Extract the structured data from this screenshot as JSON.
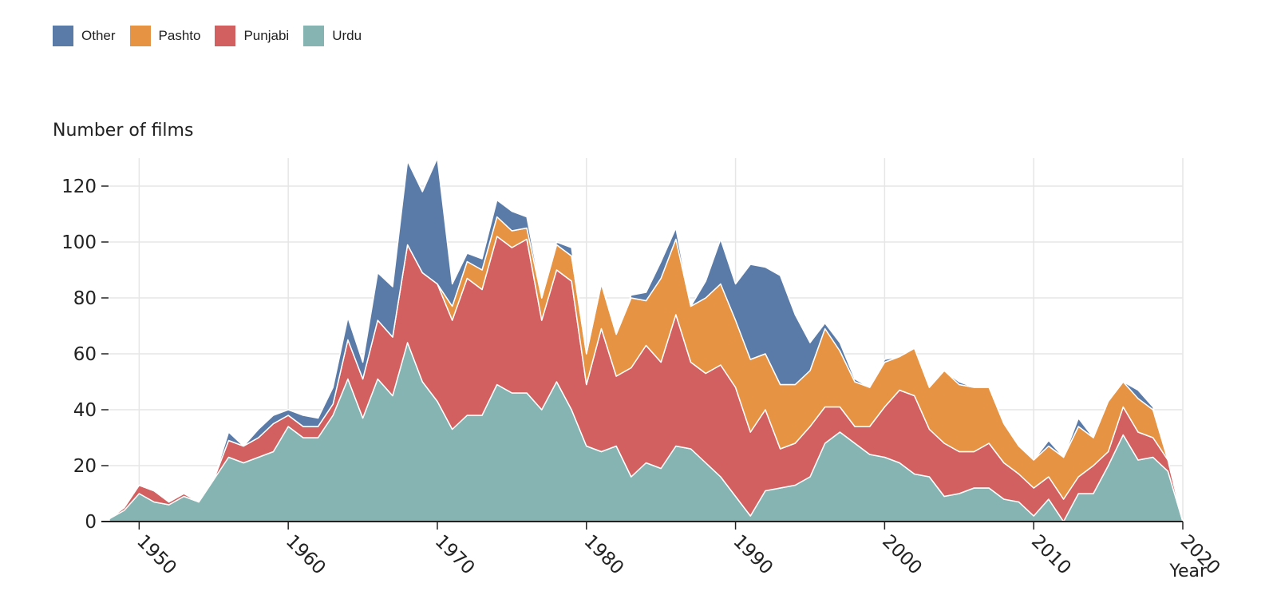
{
  "chart_data": {
    "type": "area",
    "stacked": true,
    "ylabel": "Number of films",
    "xlabel": "Year",
    "xlim": [
      1948,
      2020
    ],
    "ylim": [
      0,
      130
    ],
    "x_ticks": [
      1950,
      1960,
      1970,
      1980,
      1990,
      2000,
      2010,
      2020
    ],
    "y_ticks": [
      0,
      20,
      40,
      60,
      80,
      100,
      120
    ],
    "grid": true,
    "legend_position": "top-left",
    "legend": [
      "Other",
      "Pashto",
      "Punjabi",
      "Urdu"
    ],
    "x": [
      1948,
      1949,
      1950,
      1951,
      1952,
      1953,
      1954,
      1955,
      1956,
      1957,
      1958,
      1959,
      1960,
      1961,
      1962,
      1963,
      1964,
      1965,
      1966,
      1967,
      1968,
      1969,
      1970,
      1971,
      1972,
      1973,
      1974,
      1975,
      1976,
      1977,
      1978,
      1979,
      1980,
      1981,
      1982,
      1983,
      1984,
      1985,
      1986,
      1987,
      1988,
      1989,
      1990,
      1991,
      1992,
      1993,
      1994,
      1995,
      1996,
      1997,
      1998,
      1999,
      2000,
      2001,
      2002,
      2003,
      2004,
      2005,
      2006,
      2007,
      2008,
      2009,
      2010,
      2011,
      2012,
      2013,
      2014,
      2015,
      2016,
      2017,
      2018,
      2019,
      2020
    ],
    "series": [
      {
        "name": "Urdu",
        "color": "#86b4b2",
        "values": [
          1,
          4,
          10,
          7,
          6,
          9,
          7,
          15,
          23,
          21,
          23,
          25,
          34,
          30,
          30,
          38,
          51,
          37,
          51,
          45,
          64,
          50,
          43,
          33,
          38,
          38,
          49,
          46,
          46,
          40,
          50,
          40,
          27,
          25,
          27,
          16,
          21,
          19,
          27,
          26,
          21,
          16,
          9,
          2,
          11,
          12,
          13,
          16,
          28,
          32,
          28,
          24,
          23,
          21,
          17,
          16,
          9,
          10,
          12,
          12,
          8,
          7,
          2,
          8,
          0,
          10,
          10,
          20,
          31,
          22,
          23,
          18,
          0
        ]
      },
      {
        "name": "Punjabi",
        "color": "#d36060",
        "values": [
          0,
          1,
          3,
          4,
          1,
          1,
          0,
          0,
          6,
          6,
          7,
          10,
          4,
          4,
          4,
          4,
          14,
          14,
          21,
          21,
          35,
          39,
          42,
          39,
          49,
          45,
          53,
          52,
          55,
          32,
          40,
          46,
          22,
          44,
          25,
          39,
          42,
          38,
          47,
          31,
          32,
          40,
          39,
          30,
          29,
          14,
          15,
          18,
          13,
          9,
          6,
          10,
          18,
          26,
          28,
          17,
          19,
          15,
          13,
          16,
          13,
          10,
          10,
          8,
          8,
          6,
          10,
          5,
          10,
          10,
          7,
          4,
          0
        ]
      },
      {
        "name": "Pashto",
        "color": "#e69444",
        "values": [
          0,
          0,
          0,
          0,
          0,
          0,
          0,
          0,
          0,
          0,
          0,
          0,
          0,
          0,
          0,
          0,
          0,
          0,
          0,
          0,
          0,
          0,
          0,
          5,
          6,
          7,
          7,
          6,
          4,
          8,
          9,
          9,
          11,
          16,
          15,
          25,
          16,
          30,
          27,
          20,
          27,
          29,
          24,
          26,
          20,
          23,
          21,
          20,
          28,
          20,
          16,
          14,
          16,
          12,
          17,
          15,
          26,
          24,
          23,
          20,
          14,
          10,
          10,
          11,
          15,
          18,
          10,
          18,
          9,
          12,
          10,
          0,
          0
        ]
      },
      {
        "name": "Other",
        "color": "#5a7ba8",
        "values": [
          0,
          0,
          0,
          0,
          0,
          0,
          0,
          0,
          3,
          0,
          3,
          3,
          2,
          4,
          3,
          6,
          8,
          6,
          17,
          18,
          30,
          29,
          45,
          8,
          3,
          4,
          6,
          7,
          4,
          1,
          1,
          3,
          0,
          1,
          0,
          1,
          3,
          6,
          4,
          0,
          6,
          16,
          13,
          34,
          31,
          39,
          25,
          10,
          2,
          3,
          1,
          0,
          1,
          0,
          0,
          0,
          0,
          1,
          0,
          0,
          0,
          0,
          0,
          2,
          0,
          3,
          0,
          0,
          0,
          3,
          1,
          0,
          0
        ]
      }
    ]
  }
}
